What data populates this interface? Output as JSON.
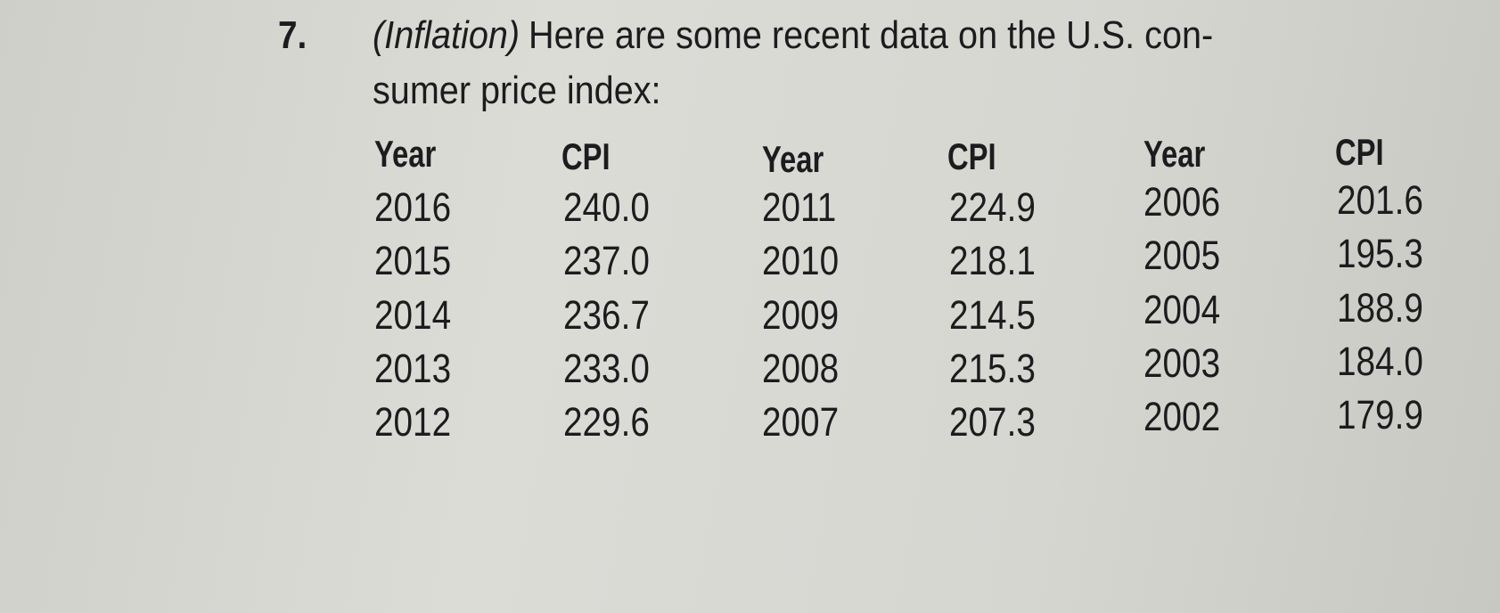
{
  "problem": {
    "number": "7.",
    "label": "(Inflation)",
    "lines": [
      "Here are some recent data on the U.S. con-",
      "sumer price index:"
    ]
  },
  "table": {
    "header": [
      "Year",
      "CPI",
      "Year",
      "CPI",
      "Year",
      "CPI"
    ],
    "rows": [
      [
        "2016",
        "240.0",
        "2011",
        "224.9",
        "2006",
        "201.6"
      ],
      [
        "2015",
        "237.0",
        "2010",
        "218.1",
        "2005",
        "195.3"
      ],
      [
        "2014",
        "236.7",
        "2009",
        "214.5",
        "2004",
        "188.9"
      ],
      [
        "2013",
        "233.0",
        "2008",
        "215.3",
        "2003",
        "184.0"
      ],
      [
        "2012",
        "229.6",
        "2007",
        "207.3",
        "2002",
        "179.9"
      ]
    ]
  }
}
